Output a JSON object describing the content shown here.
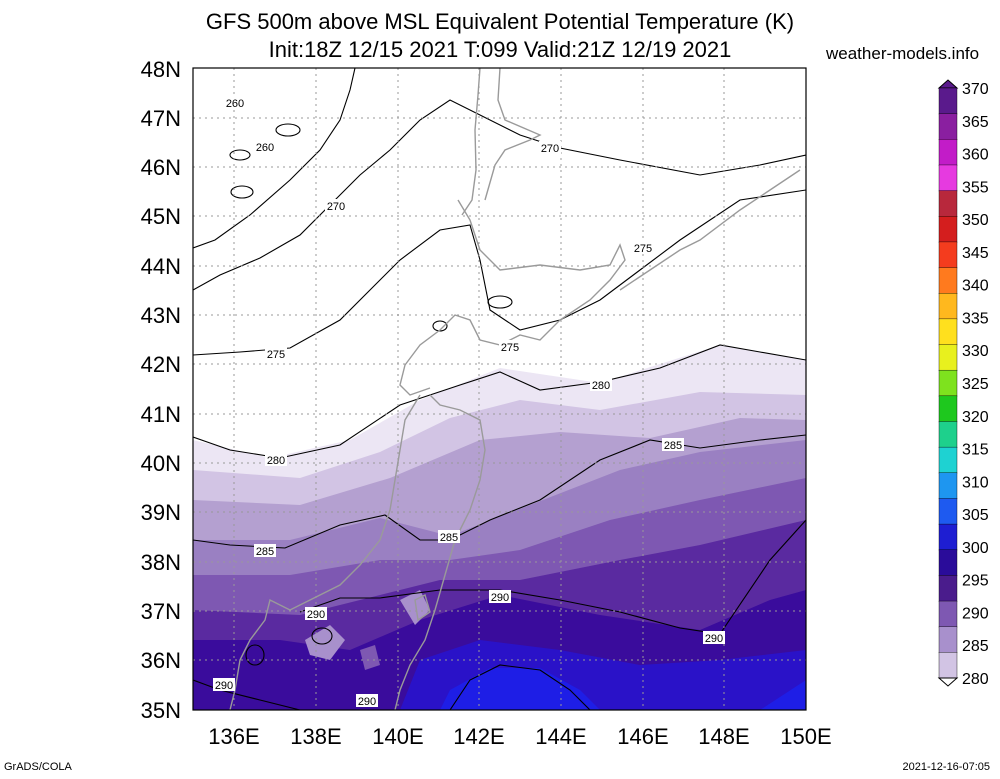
{
  "header": {
    "title_line1": "GFS 500m above MSL Equivalent Potential Temperature (K)",
    "title_line2": "Init:18Z 12/15 2021 T:099 Valid:21Z 12/19 2021",
    "site": "weather-models.info"
  },
  "footer": {
    "left": "GrADS/COLA",
    "right": "2021-12-16-07:05"
  },
  "map": {
    "lat_labels": [
      "48N",
      "47N",
      "46N",
      "45N",
      "44N",
      "43N",
      "42N",
      "41N",
      "40N",
      "39N",
      "38N",
      "37N",
      "36N",
      "35N"
    ],
    "lon_labels": [
      "136E",
      "138E",
      "140E",
      "142E",
      "144E",
      "146E",
      "148E",
      "150E"
    ],
    "contour_labels": [
      {
        "text": "260"
      },
      {
        "text": "260"
      },
      {
        "text": "270"
      },
      {
        "text": "270"
      },
      {
        "text": "275"
      },
      {
        "text": "275"
      },
      {
        "text": "275"
      },
      {
        "text": "280"
      },
      {
        "text": "280"
      },
      {
        "text": "285"
      },
      {
        "text": "285"
      },
      {
        "text": "285"
      },
      {
        "text": "290"
      },
      {
        "text": "290"
      },
      {
        "text": "290"
      },
      {
        "text": "290"
      },
      {
        "text": "290"
      }
    ]
  },
  "colorbar": {
    "levels": [
      "370",
      "365",
      "360",
      "355",
      "350",
      "345",
      "340",
      "335",
      "330",
      "325",
      "320",
      "315",
      "310",
      "305",
      "300",
      "295",
      "290",
      "285",
      "280"
    ],
    "colors": [
      "#5a1a8c",
      "#8a1fa0",
      "#c21cc8",
      "#e63ae0",
      "#b8283c",
      "#d41e1e",
      "#f43c1e",
      "#ff7a1e",
      "#ffb81e",
      "#ffe01e",
      "#e8f01e",
      "#7ee21e",
      "#1ec81e",
      "#1ed08c",
      "#1ed2d2",
      "#1e96f0",
      "#1e5af0",
      "#1e1ed2",
      "#2a0c9a",
      "#4a1c8c",
      "#7e58b2",
      "#a890cc",
      "#d2c4e4"
    ]
  }
}
